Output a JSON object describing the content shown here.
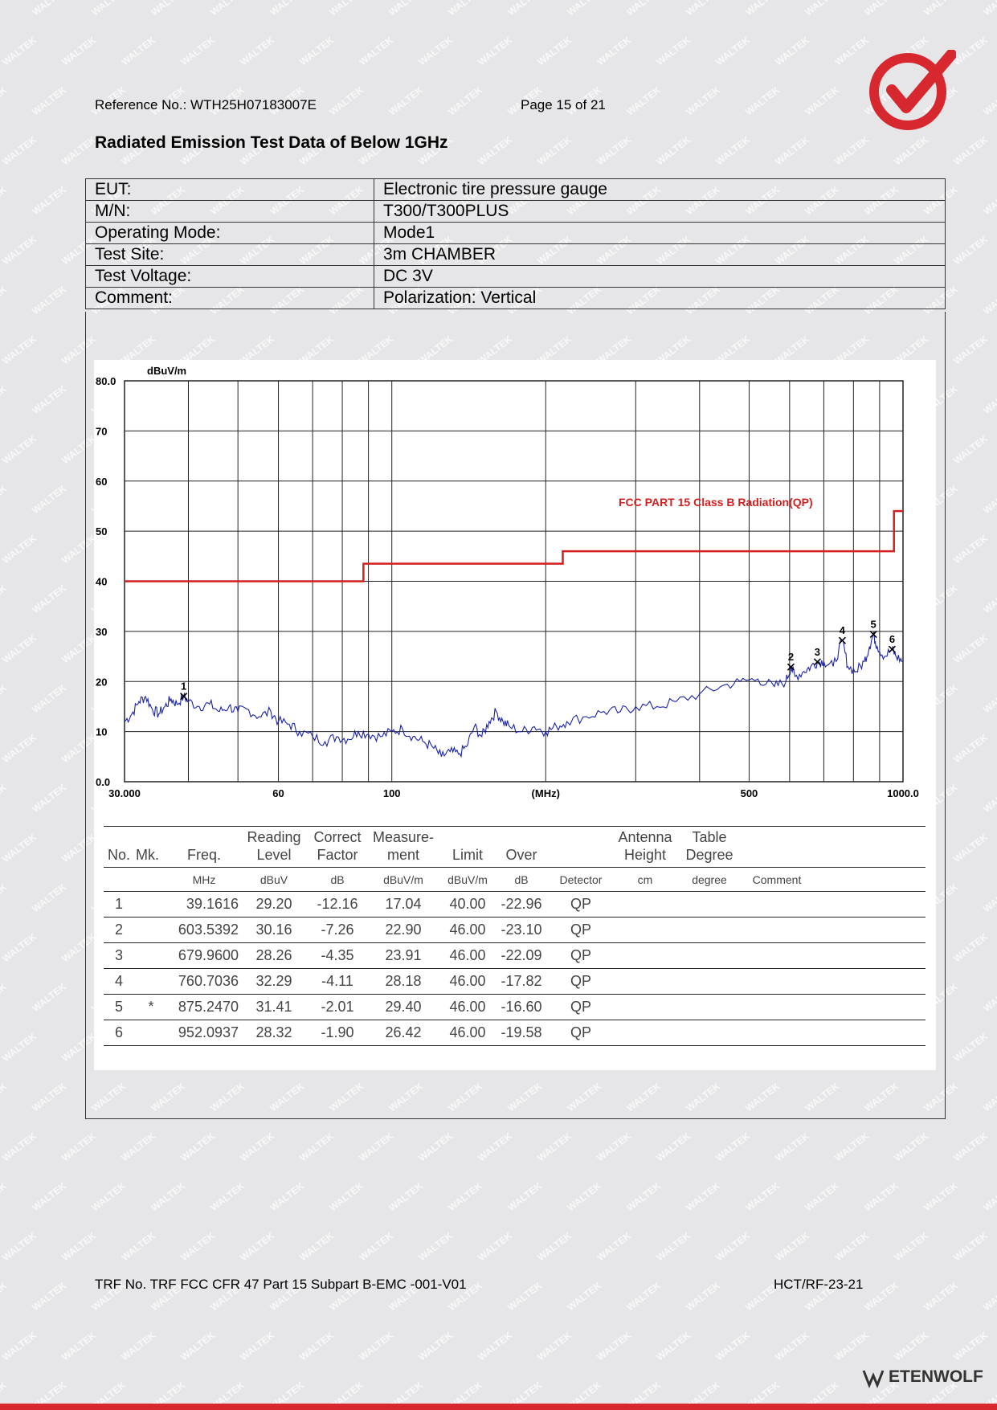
{
  "header": {
    "reference": "Reference No.: WTH25H07183007E",
    "page": "Page 15 of 21"
  },
  "title": "Radiated Emission Test Data of Below 1GHz",
  "info": [
    {
      "label": "EUT:",
      "value": "Electronic tire pressure gauge"
    },
    {
      "label": "M/N:",
      "value": "T300/T300PLUS"
    },
    {
      "label": "Operating Mode:",
      "value": "Mode1"
    },
    {
      "label": "Test Site:",
      "value": "3m CHAMBER"
    },
    {
      "label": "Test Voltage:",
      "value": "DC 3V"
    },
    {
      "label": "Comment:",
      "value": "Polarization: Vertical"
    }
  ],
  "chart_data": {
    "type": "line",
    "ylabel": "dBuV/m",
    "xlabel": "(MHz)",
    "x_scale": "log",
    "xlim": [
      30,
      1000
    ],
    "ylim": [
      0,
      80
    ],
    "y_tick_labels": [
      "80.0",
      "70",
      "60",
      "50",
      "40",
      "30",
      "20",
      "10",
      "0.0"
    ],
    "y_tick_values": [
      80,
      70,
      60,
      50,
      40,
      30,
      20,
      10,
      0
    ],
    "x_tick_labels": [
      "30.000",
      "60",
      "100",
      "(MHz)",
      "500",
      "1000.0"
    ],
    "x_tick_values": [
      30,
      60,
      100,
      200,
      500,
      1000
    ],
    "limit_label": "FCC PART 15 Class B Radiation(QP)",
    "limit_color": "#d41f1f",
    "trace_color": "#1a23a8",
    "grid": true,
    "limit_line": [
      [
        30,
        40
      ],
      [
        88,
        40
      ],
      [
        88,
        43.5
      ],
      [
        216,
        43.5
      ],
      [
        216,
        46
      ],
      [
        960,
        46
      ],
      [
        960,
        54
      ],
      [
        1000,
        54
      ]
    ],
    "trace": [
      [
        30,
        12
      ],
      [
        31,
        13.5
      ],
      [
        32,
        16
      ],
      [
        33,
        17
      ],
      [
        34,
        14.5
      ],
      [
        35,
        13.5
      ],
      [
        36,
        15
      ],
      [
        37,
        16.5
      ],
      [
        38,
        15.5
      ],
      [
        39.16,
        17.04
      ],
      [
        40,
        16
      ],
      [
        42,
        15
      ],
      [
        44,
        15.5
      ],
      [
        46,
        14
      ],
      [
        48,
        15
      ],
      [
        50,
        14
      ],
      [
        52,
        14.5
      ],
      [
        55,
        13
      ],
      [
        58,
        14
      ],
      [
        60,
        12
      ],
      [
        63,
        11.5
      ],
      [
        66,
        10
      ],
      [
        70,
        9
      ],
      [
        74,
        8
      ],
      [
        78,
        9
      ],
      [
        82,
        8.5
      ],
      [
        86,
        10
      ],
      [
        90,
        9.5
      ],
      [
        95,
        9
      ],
      [
        100,
        10
      ],
      [
        105,
        10.5
      ],
      [
        110,
        9
      ],
      [
        115,
        8
      ],
      [
        120,
        7
      ],
      [
        125,
        5
      ],
      [
        130,
        6
      ],
      [
        135,
        5.5
      ],
      [
        140,
        7
      ],
      [
        145,
        11
      ],
      [
        150,
        9
      ],
      [
        155,
        12
      ],
      [
        160,
        14
      ],
      [
        165,
        12
      ],
      [
        170,
        11
      ],
      [
        180,
        10
      ],
      [
        190,
        11
      ],
      [
        200,
        10
      ],
      [
        210,
        11
      ],
      [
        220,
        12
      ],
      [
        240,
        13
      ],
      [
        260,
        14
      ],
      [
        280,
        14
      ],
      [
        300,
        15
      ],
      [
        330,
        15
      ],
      [
        360,
        16
      ],
      [
        400,
        17.5
      ],
      [
        440,
        19
      ],
      [
        480,
        20
      ],
      [
        520,
        20.5
      ],
      [
        560,
        19
      ],
      [
        590,
        20
      ],
      [
        603.54,
        22.9
      ],
      [
        615,
        21
      ],
      [
        640,
        22
      ],
      [
        660,
        23
      ],
      [
        679.96,
        23.91
      ],
      [
        700,
        24
      ],
      [
        730,
        23
      ],
      [
        760.7,
        28.18
      ],
      [
        780,
        23
      ],
      [
        810,
        22
      ],
      [
        840,
        24
      ],
      [
        860,
        27
      ],
      [
        875.25,
        29.4
      ],
      [
        890,
        27
      ],
      [
        920,
        25
      ],
      [
        952.09,
        26.42
      ],
      [
        970,
        25
      ],
      [
        1000,
        24
      ]
    ],
    "markers": [
      {
        "id": "1",
        "x": 39.1616,
        "y": 17.04
      },
      {
        "id": "2",
        "x": 603.5392,
        "y": 22.9
      },
      {
        "id": "3",
        "x": 679.96,
        "y": 23.91
      },
      {
        "id": "4",
        "x": 760.7036,
        "y": 28.18
      },
      {
        "id": "5",
        "x": 875.247,
        "y": 29.4
      },
      {
        "id": "6",
        "x": 952.0937,
        "y": 26.42
      }
    ]
  },
  "results": {
    "headers": {
      "no": "No.",
      "mk": "Mk.",
      "freq": "Freq.",
      "reading_1": "Reading",
      "reading_2": "Level",
      "correct_1": "Correct",
      "correct_2": "Factor",
      "measure_1": "Measure-",
      "measure_2": "ment",
      "limit": "Limit",
      "over": "Over",
      "antenna_1": "Antenna",
      "antenna_2": "Height",
      "table_1": "Table",
      "table_2": "Degree"
    },
    "units": {
      "freq": "MHz",
      "reading": "dBuV",
      "correct": "dB",
      "measure": "dBuV/m",
      "limit": "dBuV/m",
      "over": "dB",
      "detector": "Detector",
      "antenna": "cm",
      "table": "degree",
      "comment": "Comment"
    },
    "rows": [
      {
        "no": "1",
        "mk": "",
        "freq": "39.1616",
        "reading": "29.20",
        "correct": "-12.16",
        "measure": "17.04",
        "limit": "40.00",
        "over": "-22.96",
        "detector": "QP"
      },
      {
        "no": "2",
        "mk": "",
        "freq": "603.5392",
        "reading": "30.16",
        "correct": "-7.26",
        "measure": "22.90",
        "limit": "46.00",
        "over": "-23.10",
        "detector": "QP"
      },
      {
        "no": "3",
        "mk": "",
        "freq": "679.9600",
        "reading": "28.26",
        "correct": "-4.35",
        "measure": "23.91",
        "limit": "46.00",
        "over": "-22.09",
        "detector": "QP"
      },
      {
        "no": "4",
        "mk": "",
        "freq": "760.7036",
        "reading": "32.29",
        "correct": "-4.11",
        "measure": "28.18",
        "limit": "46.00",
        "over": "-17.82",
        "detector": "QP"
      },
      {
        "no": "5",
        "mk": "*",
        "freq": "875.2470",
        "reading": "31.41",
        "correct": "-2.01",
        "measure": "29.40",
        "limit": "46.00",
        "over": "-16.60",
        "detector": "QP"
      },
      {
        "no": "6",
        "mk": "",
        "freq": "952.0937",
        "reading": "28.32",
        "correct": "-1.90",
        "measure": "26.42",
        "limit": "46.00",
        "over": "-19.58",
        "detector": "QP"
      }
    ]
  },
  "footer": {
    "trf": "TRF No. TRF FCC CFR 47 Part 15 Subpart B-EMC -001-V01",
    "code": "HCT/RF-23-21"
  },
  "branding": {
    "logo_text": "ETENWOLF",
    "watermark_text": "WALTEK",
    "accent_color": "#d7282f",
    "logo_icon": "check-circle-logo-icon"
  }
}
